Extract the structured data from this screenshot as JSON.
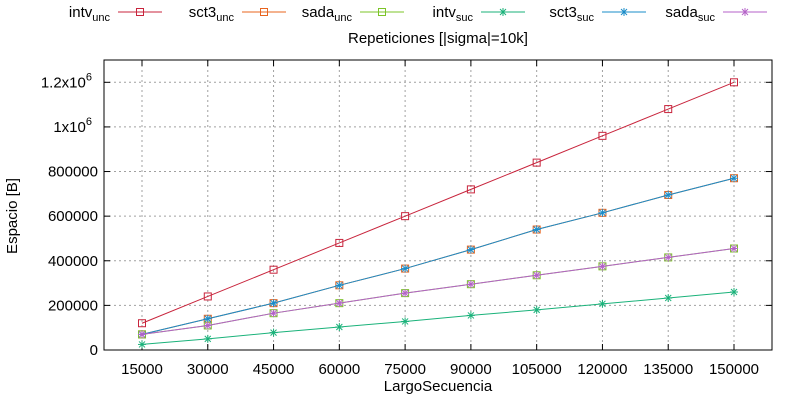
{
  "chart_data": {
    "type": "line",
    "title": "Repeticiones [|sigma|=10k]",
    "xlabel": "LargoSecuencia",
    "ylabel": "Espacio [B]",
    "x": [
      15000,
      30000,
      45000,
      60000,
      75000,
      90000,
      105000,
      120000,
      135000,
      150000
    ],
    "xlim": [
      15000,
      150000
    ],
    "ylim": [
      0,
      1300000
    ],
    "y_ticks": [
      {
        "value": 0,
        "label": "0"
      },
      {
        "value": 200000,
        "label": "200000"
      },
      {
        "value": 400000,
        "label": "400000"
      },
      {
        "value": 600000,
        "label": "600000"
      },
      {
        "value": 800000,
        "label": "800000"
      },
      {
        "value": 1000000,
        "label": "1x10",
        "sup": "6"
      },
      {
        "value": 1200000,
        "label": "1.2x10",
        "sup": "6"
      }
    ],
    "x_ticks": [
      "15000",
      "30000",
      "45000",
      "60000",
      "75000",
      "90000",
      "105000",
      "120000",
      "135000",
      "150000"
    ],
    "grid": true,
    "legend_position": "top",
    "series": [
      {
        "name": "intv",
        "sub": "unc",
        "color": "#c8243c",
        "marker": "square",
        "values": [
          120000,
          240000,
          360000,
          480000,
          600000,
          720000,
          840000,
          960000,
          1080000,
          1200000
        ]
      },
      {
        "name": "sct3",
        "sub": "unc",
        "color": "#e8641e",
        "marker": "square",
        "values": [
          70000,
          140000,
          210000,
          290000,
          365000,
          450000,
          540000,
          615000,
          695000,
          770000
        ]
      },
      {
        "name": "sada",
        "sub": "unc",
        "color": "#7cc428",
        "marker": "square",
        "values": [
          70000,
          110000,
          165000,
          210000,
          255000,
          295000,
          335000,
          375000,
          415000,
          455000
        ]
      },
      {
        "name": "intv",
        "sub": "suc",
        "color": "#1ab27a",
        "marker": "star",
        "values": [
          25000,
          50000,
          78000,
          103000,
          128000,
          155000,
          180000,
          207000,
          233000,
          260000
        ]
      },
      {
        "name": "sct3",
        "sub": "suc",
        "color": "#1a8cc8",
        "marker": "star",
        "values": [
          70000,
          140000,
          210000,
          290000,
          365000,
          450000,
          540000,
          615000,
          695000,
          770000
        ]
      },
      {
        "name": "sada",
        "sub": "suc",
        "color": "#b462c8",
        "marker": "star",
        "values": [
          70000,
          110000,
          165000,
          210000,
          255000,
          295000,
          335000,
          375000,
          415000,
          455000
        ]
      }
    ]
  }
}
